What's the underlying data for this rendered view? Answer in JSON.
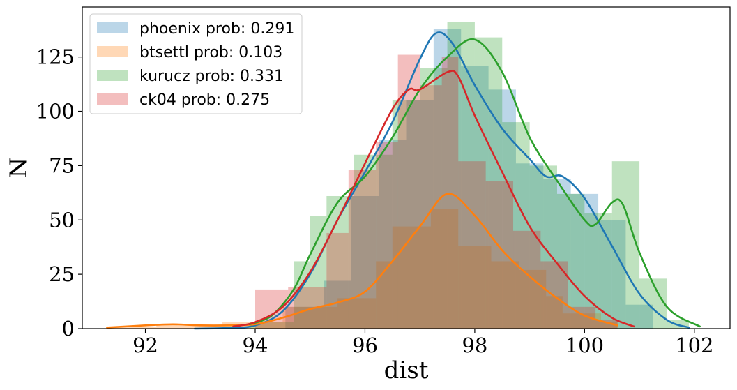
{
  "chart_data": {
    "type": "histogram",
    "xlabel": "dist",
    "ylabel": "N",
    "xlim": [
      90.85,
      102.65
    ],
    "ylim": [
      0,
      148
    ],
    "x_ticks": [
      92,
      94,
      96,
      98,
      100,
      102
    ],
    "y_ticks": [
      0,
      25,
      50,
      75,
      100,
      125
    ],
    "x_tick_labels": [
      "92",
      "94",
      "96",
      "98",
      "100",
      "102"
    ],
    "y_tick_labels": [
      "0",
      "25",
      "50",
      "75",
      "100",
      "125"
    ],
    "grid": false,
    "legend_position": "upper-left",
    "bar_alpha": 0.3,
    "series": [
      {
        "name": "phoenix prob: 0.291",
        "color": "#1f77b4",
        "bins": [
          [
            94.55,
            95.25,
            10
          ],
          [
            95.25,
            95.75,
            22
          ],
          [
            95.75,
            96.25,
            61
          ],
          [
            96.25,
            96.75,
            87
          ],
          [
            96.75,
            97.25,
            105
          ],
          [
            97.25,
            97.75,
            138
          ],
          [
            97.75,
            98.25,
            121
          ],
          [
            98.25,
            98.75,
            110
          ],
          [
            98.75,
            99.25,
            76
          ],
          [
            99.25,
            99.75,
            69
          ],
          [
            99.75,
            100.25,
            62
          ],
          [
            100.25,
            100.75,
            50
          ],
          [
            100.75,
            101.25,
            11
          ]
        ],
        "kde": [
          [
            92.9,
            0
          ],
          [
            93.5,
            0.3
          ],
          [
            94.0,
            1.5
          ],
          [
            94.5,
            8
          ],
          [
            95.0,
            25
          ],
          [
            95.5,
            50
          ],
          [
            96.0,
            72
          ],
          [
            96.5,
            95
          ],
          [
            97.0,
            124
          ],
          [
            97.3,
            136
          ],
          [
            97.6,
            131
          ],
          [
            98.0,
            112
          ],
          [
            98.5,
            92
          ],
          [
            99.0,
            78
          ],
          [
            99.3,
            70
          ],
          [
            99.6,
            70
          ],
          [
            100.0,
            60
          ],
          [
            100.5,
            38
          ],
          [
            101.0,
            16
          ],
          [
            101.5,
            4
          ],
          [
            101.9,
            0.5
          ]
        ]
      },
      {
        "name": "btsettl prob: 0.103",
        "color": "#ff7f0e",
        "bins": [
          [
            91.3,
            92.2,
            1
          ],
          [
            92.2,
            93.4,
            2
          ],
          [
            93.4,
            94.5,
            3
          ],
          [
            94.5,
            95.5,
            10
          ],
          [
            95.5,
            96.2,
            14
          ],
          [
            96.2,
            96.5,
            31
          ],
          [
            96.5,
            97.2,
            47
          ],
          [
            97.2,
            97.7,
            55
          ],
          [
            97.7,
            98.3,
            38
          ],
          [
            98.3,
            98.8,
            31
          ],
          [
            98.8,
            99.3,
            27
          ],
          [
            99.3,
            99.6,
            15
          ],
          [
            99.6,
            100.3,
            7
          ],
          [
            100.3,
            100.6,
            3
          ]
        ],
        "kde": [
          [
            91.3,
            0.5
          ],
          [
            92.0,
            1.5
          ],
          [
            92.5,
            2
          ],
          [
            93.0,
            1.5
          ],
          [
            93.5,
            1.5
          ],
          [
            94.0,
            2
          ],
          [
            94.5,
            5
          ],
          [
            95.0,
            9
          ],
          [
            95.5,
            12
          ],
          [
            96.0,
            17
          ],
          [
            96.5,
            31
          ],
          [
            97.0,
            47
          ],
          [
            97.5,
            62
          ],
          [
            98.0,
            52
          ],
          [
            98.5,
            36
          ],
          [
            99.0,
            24
          ],
          [
            99.5,
            14
          ],
          [
            100.0,
            6
          ],
          [
            100.6,
            1.5
          ]
        ]
      },
      {
        "name": "kurucz prob: 0.331",
        "color": "#2ca02c",
        "bins": [
          [
            93.9,
            94.7,
            3
          ],
          [
            94.7,
            95.0,
            31
          ],
          [
            95.0,
            95.3,
            52
          ],
          [
            95.3,
            95.8,
            61
          ],
          [
            95.8,
            96.5,
            80
          ],
          [
            96.5,
            97.0,
            105
          ],
          [
            97.0,
            97.5,
            120
          ],
          [
            97.5,
            98.0,
            141
          ],
          [
            98.0,
            98.5,
            134
          ],
          [
            98.5,
            99.0,
            95
          ],
          [
            99.0,
            99.5,
            75
          ],
          [
            99.5,
            100.0,
            62
          ],
          [
            100.0,
            100.5,
            53
          ],
          [
            100.5,
            101.0,
            77
          ],
          [
            101.0,
            101.5,
            23
          ],
          [
            101.5,
            101.9,
            4
          ]
        ],
        "kde": [
          [
            93.9,
            2
          ],
          [
            94.3,
            6
          ],
          [
            94.7,
            18
          ],
          [
            95.0,
            34
          ],
          [
            95.5,
            58
          ],
          [
            96.0,
            70
          ],
          [
            96.5,
            88
          ],
          [
            97.0,
            110
          ],
          [
            97.5,
            125
          ],
          [
            98.0,
            133
          ],
          [
            98.5,
            118
          ],
          [
            99.0,
            88
          ],
          [
            99.5,
            68
          ],
          [
            100.0,
            50
          ],
          [
            100.2,
            48
          ],
          [
            100.5,
            58
          ],
          [
            100.7,
            57
          ],
          [
            101.0,
            35
          ],
          [
            101.5,
            10
          ],
          [
            102.1,
            1
          ]
        ]
      },
      {
        "name": "ck04 prob: 0.275",
        "color": "#d62728",
        "bins": [
          [
            94.0,
            94.6,
            18
          ],
          [
            94.6,
            95.3,
            19
          ],
          [
            95.3,
            95.7,
            44
          ],
          [
            95.7,
            96.2,
            73
          ],
          [
            96.2,
            96.6,
            86
          ],
          [
            96.6,
            97.0,
            126
          ],
          [
            97.0,
            97.4,
            112
          ],
          [
            97.4,
            97.7,
            125
          ],
          [
            97.7,
            98.2,
            77
          ],
          [
            98.2,
            98.7,
            68
          ],
          [
            98.7,
            99.2,
            45
          ],
          [
            99.2,
            99.7,
            31
          ],
          [
            99.7,
            100.2,
            10
          ],
          [
            100.2,
            100.6,
            4
          ]
        ],
        "kde": [
          [
            93.6,
            1
          ],
          [
            94.0,
            3
          ],
          [
            94.5,
            10
          ],
          [
            95.0,
            26
          ],
          [
            95.5,
            50
          ],
          [
            96.0,
            76
          ],
          [
            96.5,
            101
          ],
          [
            96.8,
            110
          ],
          [
            97.0,
            110
          ],
          [
            97.5,
            118
          ],
          [
            97.7,
            116
          ],
          [
            98.0,
            98
          ],
          [
            98.5,
            72
          ],
          [
            99.0,
            47
          ],
          [
            99.5,
            30
          ],
          [
            100.0,
            15
          ],
          [
            100.5,
            5
          ],
          [
            100.9,
            1
          ]
        ]
      }
    ]
  }
}
